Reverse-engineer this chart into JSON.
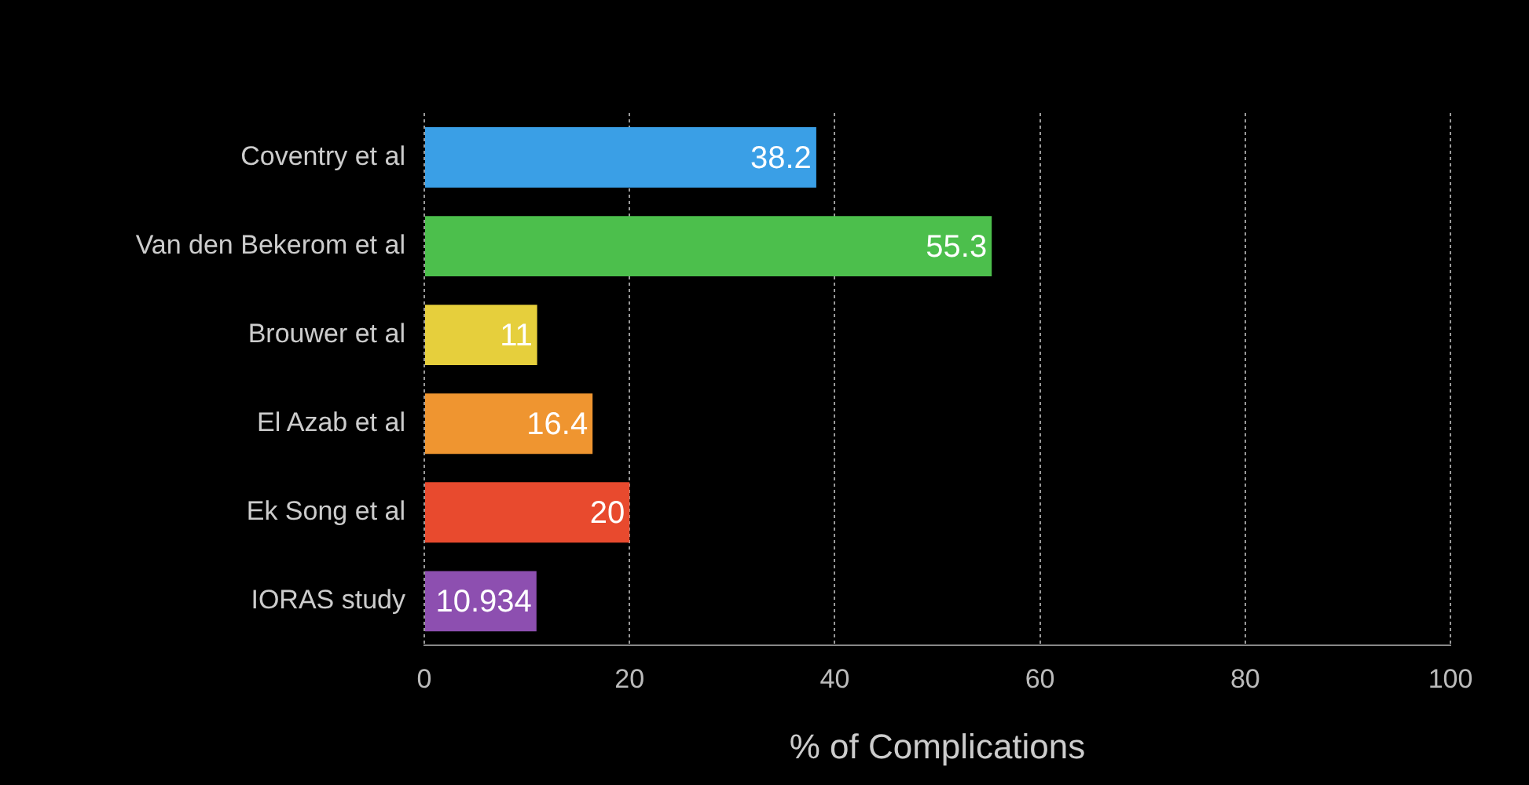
{
  "chart_data": {
    "type": "bar",
    "orientation": "horizontal",
    "xlabel": "% of Complications",
    "categories": [
      "Coventry et al",
      "Van den Bekerom et al",
      "Brouwer et al",
      "El Azab et al",
      "Ek Song et al",
      "IORAS study"
    ],
    "values": [
      38.2,
      55.3,
      11,
      16.4,
      20,
      10.934
    ],
    "colors": [
      "#3a9fe6",
      "#4cbf4c",
      "#e6cf3c",
      "#ef9530",
      "#e84a2e",
      "#8d4fb0"
    ],
    "xlim": [
      0,
      100
    ],
    "xticks": [
      0,
      20,
      40,
      60,
      80,
      100
    ],
    "grid": "x",
    "data_labels": true,
    "legend": false
  }
}
